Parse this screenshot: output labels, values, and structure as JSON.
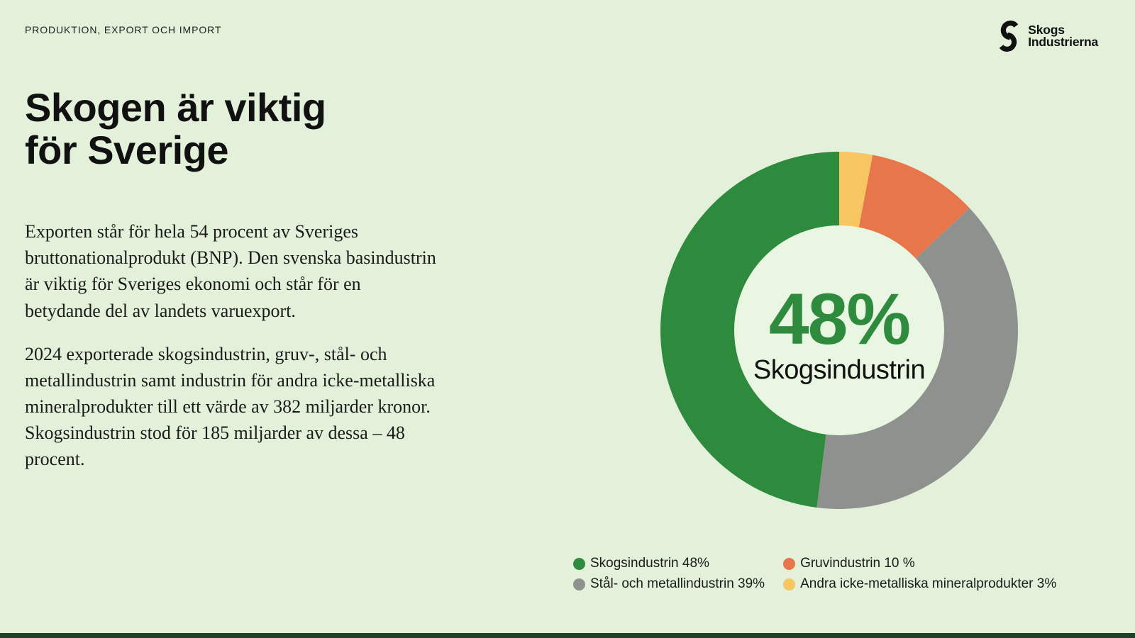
{
  "page": {
    "kicker": "PRODUKTION, EXPORT OCH IMPORT",
    "title_line1": "Skogen är viktig",
    "title_line2": "för Sverige",
    "paragraphs": [
      "Exporten står för hela 54 procent av Sveriges bruttonationalprodukt (BNP). Den svenska basindustrin är viktig för Sveriges ekonomi och står för en betydande del av landets varuexport.",
      "2024 exporterade skogsindustrin, gruv-, stål- och metallindustrin samt industrin för andra icke-metalliska mineralprodukter till ett värde av 382 miljarder kronor. Skogsindustrin stod för 185 miljarder av dessa – 48 procent."
    ]
  },
  "logo": {
    "name_line1": "Skogs",
    "name_line2": "Industrierna"
  },
  "colors": {
    "background": "#e3f1da",
    "donut_hole": "#e9f6e1",
    "accent_green": "#2e8b3e",
    "footer_bar": "#1d4226"
  },
  "chart_data": {
    "type": "pie",
    "donut": true,
    "start_angle_deg": -90,
    "direction": "clockwise",
    "legend_position": "bottom",
    "center_value": "48%",
    "center_label": "Skogsindustrin",
    "segments": [
      {
        "label": "Andra icke-metalliska mineralprodukter",
        "value": 3,
        "color": "#f7c661",
        "legend_label": "Andra icke-metalliska mineralprodukter 3%"
      },
      {
        "label": "Gruvindustrin",
        "value": 10,
        "color": "#e7764a",
        "legend_label": "Gruvindustrin 10 %"
      },
      {
        "label": "Stål- och metallindustrin",
        "value": 39,
        "color": "#8f918f",
        "legend_label": "Stål- och metallindustrin 39%"
      },
      {
        "label": "Skogsindustrin",
        "value": 48,
        "color": "#2e8b3e",
        "legend_label": "Skogsindustrin 48%"
      }
    ]
  }
}
